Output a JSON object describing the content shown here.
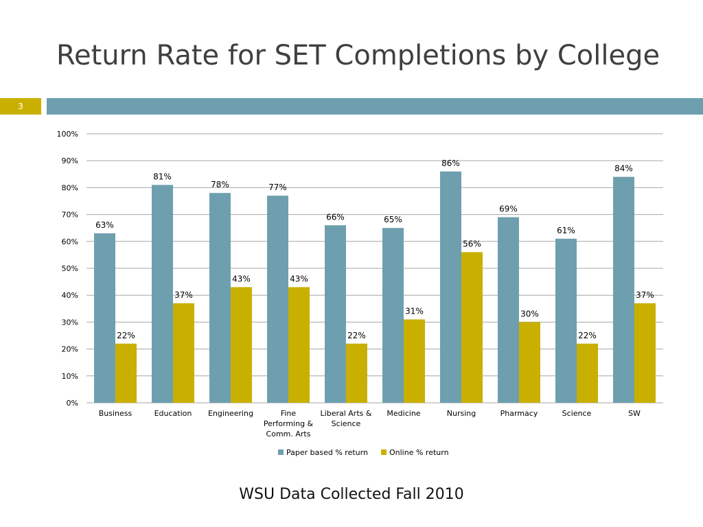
{
  "slide": {
    "title": "Return Rate for SET Completions by College",
    "number": "3",
    "footer": "WSU Data Collected Fall 2010"
  },
  "colors": {
    "band_left": "#c9b000",
    "band_right": "#6e9fae"
  },
  "chart_data": {
    "type": "bar",
    "categories": [
      [
        "Business"
      ],
      [
        "Education"
      ],
      [
        "Engineering"
      ],
      [
        "Fine",
        "Performing &",
        "Comm. Arts"
      ],
      [
        "Liberal Arts &",
        "Science"
      ],
      [
        "Medicine"
      ],
      [
        "Nursing"
      ],
      [
        "Pharmacy"
      ],
      [
        "Science"
      ],
      [
        "SW"
      ]
    ],
    "series": [
      {
        "name": "Paper based % return",
        "color": "#6e9fae",
        "values": [
          63,
          81,
          78,
          77,
          66,
          65,
          86,
          69,
          61,
          84
        ],
        "labels": [
          "63%",
          "81%",
          "78%",
          "77%",
          "66%",
          "65%",
          "86%",
          "69%",
          "61%",
          "84%"
        ]
      },
      {
        "name": "Online % return",
        "color": "#c9b000",
        "values": [
          22,
          37,
          43,
          43,
          22,
          31,
          56,
          30,
          22,
          37
        ],
        "labels": [
          "22%",
          "37%",
          "43%",
          "43%",
          "22%",
          "31%",
          "56%",
          "30%",
          "22%",
          "37%"
        ]
      }
    ],
    "ylim": [
      0,
      100
    ],
    "yticks": [
      "0%",
      "10%",
      "20%",
      "30%",
      "40%",
      "50%",
      "60%",
      "70%",
      "80%",
      "90%",
      "100%"
    ],
    "grid": true,
    "legend": "bottom"
  }
}
